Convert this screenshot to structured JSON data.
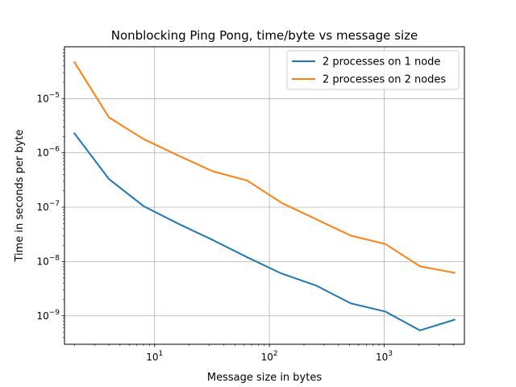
{
  "chart_data": {
    "type": "line",
    "title": "Nonblocking Ping Pong, time/byte vs message size",
    "xlabel": "Message size in bytes",
    "ylabel": "Time in seconds per byte",
    "x_scale": "log",
    "y_scale": "log",
    "xlim": [
      1.64,
      5000
    ],
    "ylim": [
      3e-10,
      9e-05
    ],
    "grid": true,
    "legend_position": "top-right",
    "x_ticks": [
      {
        "value": 10,
        "base": "10",
        "exp": "1"
      },
      {
        "value": 100,
        "base": "10",
        "exp": "2"
      },
      {
        "value": 1000,
        "base": "10",
        "exp": "3"
      }
    ],
    "y_ticks": [
      {
        "value": 1e-09,
        "base": "10",
        "exp": "−9"
      },
      {
        "value": 1e-08,
        "base": "10",
        "exp": "−8"
      },
      {
        "value": 1e-07,
        "base": "10",
        "exp": "−7"
      },
      {
        "value": 1e-06,
        "base": "10",
        "exp": "−6"
      },
      {
        "value": 1e-05,
        "base": "10",
        "exp": "−5"
      }
    ],
    "series": [
      {
        "name": "2 processes on 1 node",
        "color": "#1f77b4",
        "x": [
          2,
          4,
          8,
          16,
          32,
          64,
          128,
          256,
          512,
          1024,
          2048,
          4096
        ],
        "y": [
          2.3e-06,
          3.3e-07,
          1.05e-07,
          5e-08,
          2.5e-08,
          1.2e-08,
          6e-09,
          3.6e-09,
          1.7e-09,
          1.2e-09,
          5.4e-10,
          8.5e-10
        ]
      },
      {
        "name": "2 processes on 2 nodes",
        "color": "#ff7f0e",
        "x": [
          2,
          4,
          8,
          16,
          32,
          64,
          128,
          256,
          512,
          1024,
          2048,
          4096
        ],
        "y": [
          4.7e-05,
          4.5e-06,
          1.8e-06,
          9e-07,
          4.6e-07,
          3.1e-07,
          1.2e-07,
          6e-08,
          3e-08,
          2.1e-08,
          8.2e-09,
          6.2e-09
        ]
      }
    ]
  }
}
